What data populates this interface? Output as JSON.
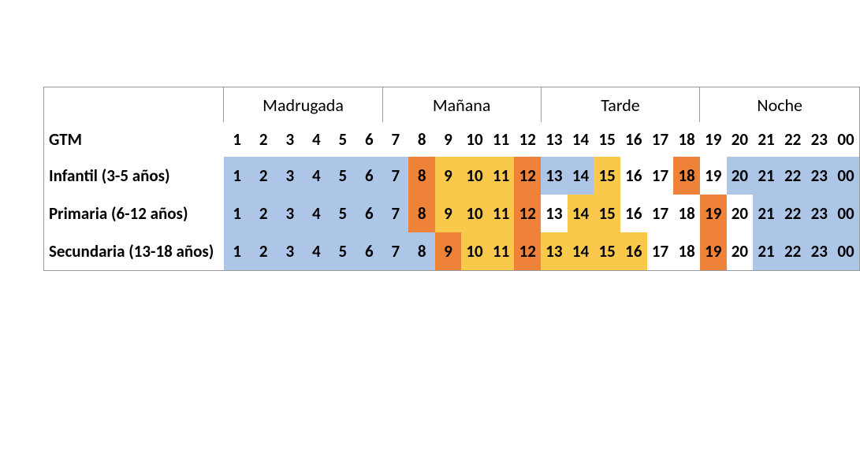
{
  "colors": {
    "blue": "#adc6e8",
    "orange": "#ee8238",
    "yellow": "#f9c94b",
    "white": "#ffffff",
    "border": "#999999",
    "text": "#000000"
  },
  "layout": {
    "labelColWidth": 225,
    "hourCellWidth": 34,
    "hourCellHeight": 48,
    "headerHeight": 44,
    "fontSize": 21,
    "headerFontSize": 22
  },
  "hours": [
    "1",
    "2",
    "3",
    "4",
    "5",
    "6",
    "7",
    "8",
    "9",
    "10",
    "11",
    "12",
    "13",
    "14",
    "15",
    "16",
    "17",
    "18",
    "19",
    "20",
    "21",
    "22",
    "23",
    "00"
  ],
  "header": {
    "sections": [
      {
        "label": "Madrugada",
        "span": 6
      },
      {
        "label": "Mañana",
        "span": 6
      },
      {
        "label": "Tarde",
        "span": 6
      },
      {
        "label": "Noche",
        "span": 6
      }
    ],
    "gtmLabel": "GTM"
  },
  "rows": [
    {
      "label": "Infantil (3-5 años)",
      "colors": [
        "blue",
        "blue",
        "blue",
        "blue",
        "blue",
        "blue",
        "blue",
        "orange",
        "yellow",
        "yellow",
        "yellow",
        "orange",
        "blue",
        "blue",
        "yellow",
        "white",
        "white",
        "orange",
        "white",
        "blue",
        "blue",
        "blue",
        "blue",
        "blue"
      ]
    },
    {
      "label": "Primaria (6-12 años)",
      "colors": [
        "blue",
        "blue",
        "blue",
        "blue",
        "blue",
        "blue",
        "blue",
        "orange",
        "yellow",
        "yellow",
        "yellow",
        "orange",
        "white",
        "yellow",
        "yellow",
        "white",
        "white",
        "white",
        "orange",
        "white",
        "blue",
        "blue",
        "blue",
        "blue"
      ]
    },
    {
      "label": "Secundaria (13-18 años)",
      "colors": [
        "blue",
        "blue",
        "blue",
        "blue",
        "blue",
        "blue",
        "blue",
        "blue",
        "orange",
        "yellow",
        "yellow",
        "orange",
        "yellow",
        "yellow",
        "yellow",
        "yellow",
        "white",
        "white",
        "orange",
        "white",
        "blue",
        "blue",
        "blue",
        "blue"
      ]
    }
  ]
}
